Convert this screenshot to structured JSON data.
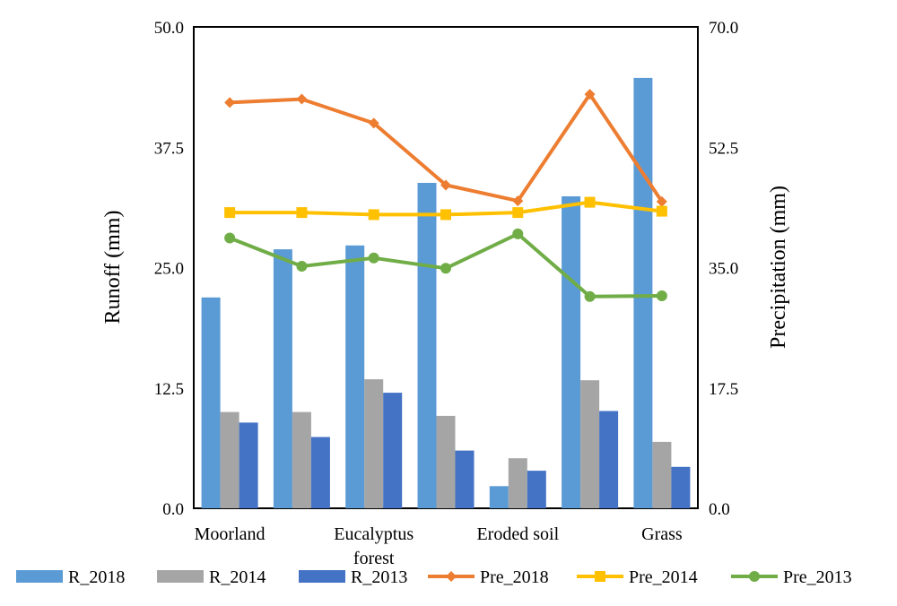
{
  "chart_data": {
    "type": "bar+line",
    "categories": [
      "Moorland",
      "",
      "Eucalyptus forest",
      "",
      "Eroded soil",
      "",
      "Grass"
    ],
    "category_labels_shown": [
      "Moorland",
      "Eucalyptus",
      "forest",
      "Eroded soil",
      "Grass"
    ],
    "y_left": {
      "label": "Runoff (mm)",
      "ylim": [
        0,
        50
      ],
      "ticks": [
        "0.0",
        "12.5",
        "25.0",
        "37.5",
        "50.0"
      ]
    },
    "y_right": {
      "label": "Precipitation (mm)",
      "ylim": [
        0,
        70
      ],
      "ticks": [
        "0.0",
        "17.5",
        "35.0",
        "52.5",
        "70.0"
      ]
    },
    "bar_series": [
      {
        "name": "R_2018",
        "color": "#5b9bd5",
        "values": [
          21.9,
          26.9,
          27.3,
          33.8,
          2.3,
          32.4,
          44.7
        ]
      },
      {
        "name": "R_2014",
        "color": "#a5a5a5",
        "values": [
          10.0,
          10.0,
          13.4,
          9.6,
          5.2,
          13.3,
          6.9
        ]
      },
      {
        "name": "R_2013",
        "color": "#4472c4",
        "values": [
          8.9,
          7.4,
          12.0,
          6.0,
          3.9,
          10.1,
          4.3
        ]
      }
    ],
    "line_series": [
      {
        "name": "Pre_2018",
        "color": "#ed7d31",
        "marker": "diamond",
        "values": [
          59.0,
          59.5,
          56.0,
          47.0,
          44.7,
          60.2,
          44.6
        ]
      },
      {
        "name": "Pre_2014",
        "color": "#ffc000",
        "marker": "square",
        "values": [
          43.0,
          43.0,
          42.7,
          42.7,
          43.0,
          44.5,
          43.2
        ]
      },
      {
        "name": "Pre_2013",
        "color": "#70ad47",
        "marker": "circle",
        "values": [
          39.3,
          35.2,
          36.4,
          34.9,
          39.9,
          30.8,
          30.9
        ]
      }
    ],
    "legend": [
      "R_2018",
      "R_2014",
      "R_2013",
      "Pre_2018",
      "Pre_2014",
      "Pre_2013"
    ],
    "legend_position": "bottom",
    "grid": false
  }
}
